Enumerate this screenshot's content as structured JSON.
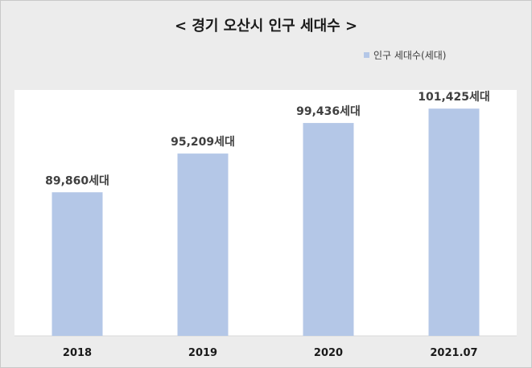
{
  "chart_data": {
    "type": "bar",
    "title": "< 경기 오산시 인구 세대수 >",
    "categories": [
      "2018",
      "2019",
      "2020",
      "2021.07"
    ],
    "series": [
      {
        "name": "인구 세대수(세대)",
        "values": [
          89860,
          95209,
          99436,
          101425
        ]
      }
    ],
    "data_labels": [
      "89,860세대",
      "95,209세대",
      "99,436세대",
      "101,425세대"
    ],
    "bar_color": "#b4c7e7",
    "ylim": [
      70000,
      104000
    ],
    "grid": false,
    "legend_position": "top-right"
  }
}
